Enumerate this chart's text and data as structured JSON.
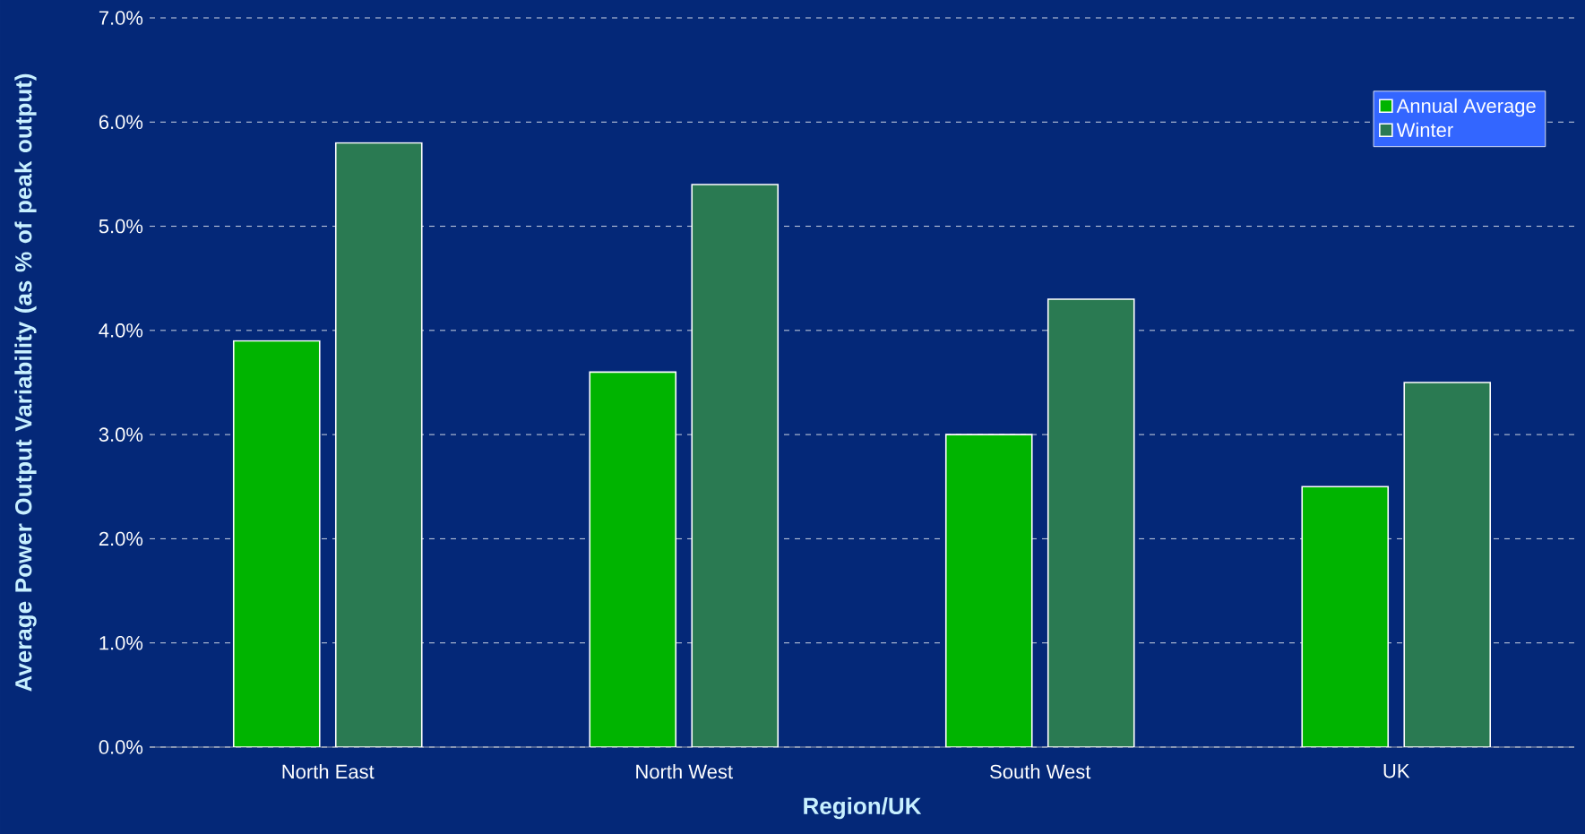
{
  "chart_data": {
    "type": "bar",
    "xlabel": "Region/UK",
    "ylabel": "Average Power Output Variability (as % of peak output)",
    "categories": [
      "North East",
      "North West",
      "South West",
      "UK"
    ],
    "series": [
      {
        "name": "Annual Average",
        "color": "#00b400",
        "values": [
          3.9,
          3.6,
          3.0,
          2.5
        ]
      },
      {
        "name": "Winter",
        "color": "#2a7a52",
        "values": [
          5.8,
          5.4,
          4.3,
          3.5
        ]
      }
    ],
    "ylim": [
      0,
      7
    ],
    "yticks": [
      {
        "value": 0,
        "label": "0.0%"
      },
      {
        "value": 1,
        "label": "1.0%"
      },
      {
        "value": 2,
        "label": "2.0%"
      },
      {
        "value": 3,
        "label": "3.0%"
      },
      {
        "value": 4,
        "label": "4.0%"
      },
      {
        "value": 5,
        "label": "5.0%"
      },
      {
        "value": 6,
        "label": "6.0%"
      },
      {
        "value": 7,
        "label": "7.0%"
      }
    ],
    "grid": "y",
    "legend": "top right"
  }
}
